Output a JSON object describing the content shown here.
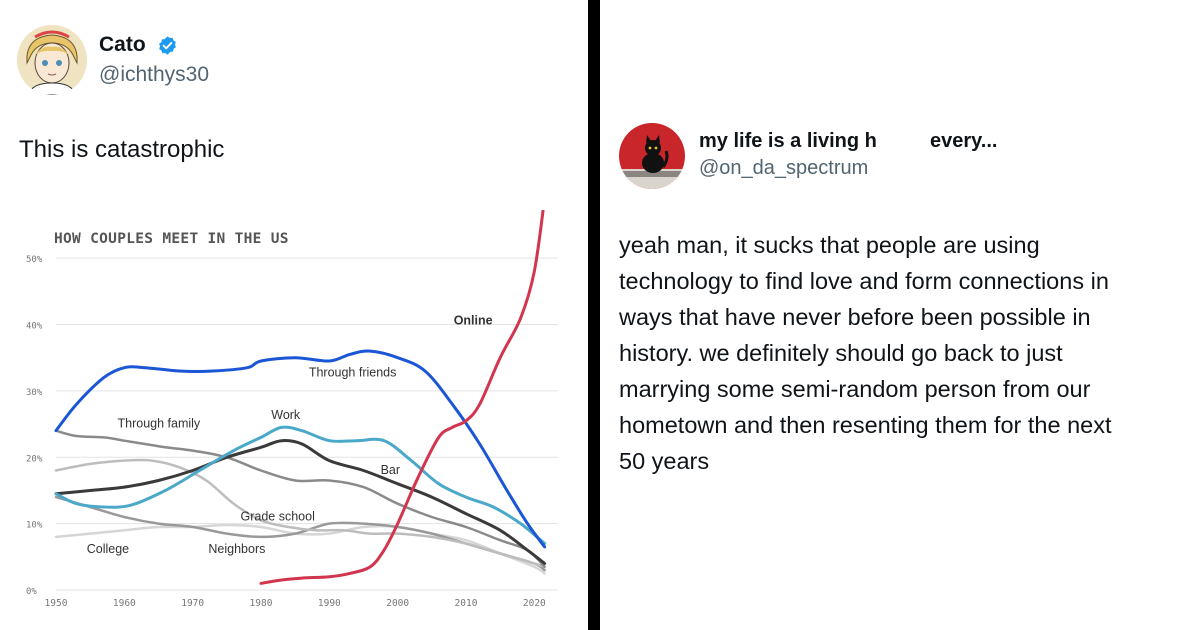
{
  "left_tweet": {
    "name": "Cato",
    "handle": "@ichthys30",
    "text": "This is catastrophic",
    "verified_icon": "verified-badge-icon",
    "colors": {
      "verified": "#1d9bf0"
    }
  },
  "right_tweet": {
    "name": "my life is a living h",
    "name_suffix": "every...",
    "handle": "@on_da_spectrum",
    "text_lines": [
      "yeah man, it sucks that people are using",
      "technology to find love and form connections in",
      "ways that have never before been possible in",
      "history. we definitely should go back to just",
      "marrying some semi-random person from our",
      "hometown and then resenting them for the next",
      "50 years"
    ]
  },
  "chart_data": {
    "type": "line",
    "title": "HOW COUPLES MEET IN THE US",
    "xlabel": "",
    "ylabel": "",
    "xlim": [
      1950,
      2022
    ],
    "ylim": [
      0,
      55
    ],
    "x_ticks": [
      1950,
      1960,
      1970,
      1980,
      1990,
      2000,
      2010,
      2020
    ],
    "x_tick_labels": [
      "1950",
      "1960",
      "1970",
      "1980",
      "1990",
      "2000",
      "2010",
      "2020"
    ],
    "y_ticks": [
      0,
      10,
      20,
      30,
      40,
      50
    ],
    "y_tick_labels": [
      "0%",
      "10%",
      "20%",
      "30%",
      "40%",
      "50%"
    ],
    "grid": true,
    "series": [
      {
        "name": "Online",
        "color": "#d1364e",
        "width": 3,
        "x": [
          1980,
          1983,
          1986,
          1990,
          1993,
          1996,
          1998,
          2000,
          2003,
          2006,
          2008,
          2010,
          2012,
          2015,
          2018,
          2020,
          2021.5
        ],
        "y": [
          1,
          1.5,
          1.8,
          2,
          2.5,
          3.5,
          6,
          10,
          17,
          23,
          24.5,
          25.5,
          28,
          35,
          41,
          48,
          59
        ]
      },
      {
        "name": "Through friends",
        "color": "#1a56d6",
        "width": 3,
        "x": [
          1950,
          1953,
          1957,
          1960,
          1963,
          1968,
          1973,
          1978,
          1980,
          1985,
          1990,
          1993,
          1996,
          2000,
          2004,
          2008,
          2012,
          2016,
          2019,
          2021.5
        ],
        "y": [
          24,
          28,
          32,
          33.5,
          33.5,
          33,
          33,
          33.5,
          34.5,
          35,
          34.5,
          35.5,
          36,
          35,
          33,
          28,
          22,
          15,
          10,
          6.5
        ]
      },
      {
        "name": "Work",
        "color": "#4aa8c8",
        "width": 3,
        "x": [
          1950,
          1953,
          1957,
          1961,
          1966,
          1971,
          1976,
          1980,
          1983,
          1986,
          1990,
          1994,
          1998,
          2002,
          2006,
          2010,
          2014,
          2018,
          2021.5
        ],
        "y": [
          14.5,
          13,
          12.5,
          12.8,
          15,
          18,
          21,
          23,
          24.5,
          24,
          22.5,
          22.5,
          22.5,
          19.5,
          16,
          14,
          12.5,
          10,
          7
        ]
      },
      {
        "name": "Bar",
        "color": "#3a3a3a",
        "width": 3,
        "x": [
          1950,
          1955,
          1960,
          1965,
          1970,
          1975,
          1980,
          1983,
          1986,
          1990,
          1995,
          2000,
          2005,
          2010,
          2015,
          2019,
          2021.5
        ],
        "y": [
          14.5,
          15,
          15.5,
          16.5,
          18,
          20,
          21.5,
          22.5,
          22,
          19.5,
          18,
          16,
          14,
          11.5,
          9,
          6,
          4
        ]
      },
      {
        "name": "Through family",
        "color": "#8a8a8a",
        "width": 2.5,
        "x": [
          1950,
          1953,
          1957,
          1960,
          1963,
          1966,
          1970,
          1975,
          1980,
          1985,
          1990,
          1995,
          2000,
          2005,
          2010,
          2015,
          2019,
          2021.5
        ],
        "y": [
          24,
          23.2,
          23,
          22.5,
          22,
          21.5,
          21,
          20,
          18,
          16.5,
          16.5,
          15.5,
          13,
          11,
          9.5,
          7.5,
          6,
          3.5
        ]
      },
      {
        "name": "Grade school",
        "color": "#bdbdbd",
        "width": 2.5,
        "x": [
          1950,
          1955,
          1960,
          1964,
          1968,
          1972,
          1976,
          1980,
          1984,
          1988,
          1992,
          1996,
          2000,
          2005,
          2010,
          2015,
          2020,
          2021.5
        ],
        "y": [
          18,
          19,
          19.5,
          19.5,
          18.5,
          16.5,
          13,
          10.5,
          9.5,
          9,
          9,
          8.5,
          8.5,
          8,
          7,
          5.5,
          4,
          3.5
        ]
      },
      {
        "name": "College",
        "color": "#999999",
        "width": 2.5,
        "x": [
          1950,
          1955,
          1960,
          1965,
          1970,
          1975,
          1980,
          1985,
          1990,
          1995,
          2000,
          2005,
          2010,
          2015,
          2020,
          2021.5
        ],
        "y": [
          14,
          12.5,
          11,
          10,
          9.5,
          8.5,
          8,
          8.5,
          10,
          10,
          9.5,
          8.5,
          7,
          5.5,
          4,
          3
        ]
      },
      {
        "name": "Neighbors",
        "color": "#d6d6d6",
        "width": 2.5,
        "x": [
          1950,
          1955,
          1960,
          1965,
          1970,
          1975,
          1980,
          1985,
          1990,
          1995,
          2000,
          2005,
          2010,
          2015,
          2020,
          2021.5
        ],
        "y": [
          8,
          8.5,
          9,
          9.5,
          9.5,
          9.8,
          9.5,
          8.5,
          8.5,
          9.5,
          9.5,
          8.5,
          7.5,
          5.5,
          3.5,
          2.5
        ]
      }
    ],
    "annotations": [
      {
        "text": "Online",
        "x": 2008.2,
        "y": 40
      },
      {
        "text": "Through friends",
        "x": 1987,
        "y": 32.2
      },
      {
        "text": "Work",
        "x": 1981.5,
        "y": 25.8
      },
      {
        "text": "Through family",
        "x": 1959,
        "y": 24.5
      },
      {
        "text": "Bar",
        "x": 1997.5,
        "y": 17.5
      },
      {
        "text": "Grade school",
        "x": 1977,
        "y": 10.5
      },
      {
        "text": "College",
        "x": 1954.5,
        "y": 5.6
      },
      {
        "text": "Neighbors",
        "x": 1972.3,
        "y": 5.6
      }
    ]
  }
}
